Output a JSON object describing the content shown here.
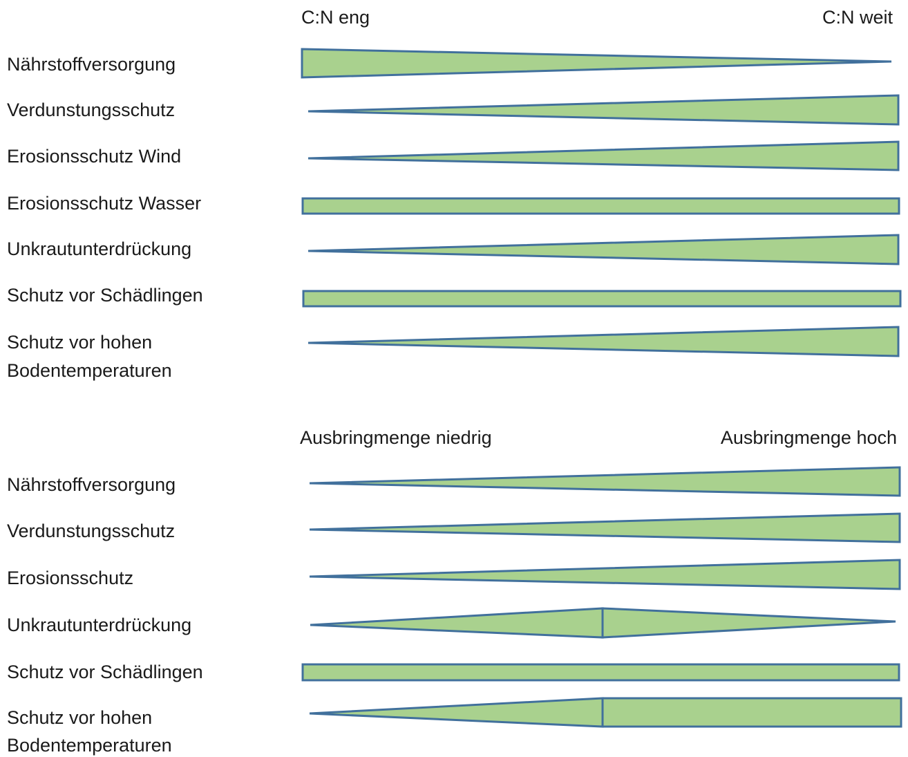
{
  "section1": {
    "left_label": "C:N eng",
    "right_label": "C:N weit",
    "rows": [
      {
        "lines": [
          "Nährstoffversorgung"
        ],
        "trend": "decreasing"
      },
      {
        "lines": [
          "Verdunstungsschutz"
        ],
        "trend": "increasing"
      },
      {
        "lines": [
          "Erosionsschutz  Wind"
        ],
        "trend": "increasing"
      },
      {
        "lines": [
          "Erosionsschutz  Wasser"
        ],
        "trend": "constant"
      },
      {
        "lines": [
          "Unkrautunterdrückung"
        ],
        "trend": "increasing"
      },
      {
        "lines": [
          "Schutz vor Schädlingen"
        ],
        "trend": "constant"
      },
      {
        "lines": [
          "Schutz vor hohen",
          "Bodentemperaturen"
        ],
        "trend": "increasing"
      }
    ]
  },
  "section2": {
    "left_label": "Ausbringmenge niedrig",
    "right_label": "Ausbringmenge hoch",
    "rows": [
      {
        "lines": [
          "Nährstoffversorgung"
        ],
        "trend": "increasing"
      },
      {
        "lines": [
          "Verdunstungsschutz"
        ],
        "trend": "increasing"
      },
      {
        "lines": [
          "Erosionsschutz"
        ],
        "trend": "increasing"
      },
      {
        "lines": [
          "Unkrautunterdrückung"
        ],
        "trend": "increase-then-decrease"
      },
      {
        "lines": [
          "Schutz vor Schädlingen"
        ],
        "trend": "constant"
      },
      {
        "lines": [
          "Schutz vor hohen",
          "Bodentemperaturen"
        ],
        "trend": "increase-then-constant"
      }
    ]
  },
  "colors": {
    "fill": "#a9d18e",
    "stroke": "#41709c",
    "text": "#1a1a1a"
  }
}
